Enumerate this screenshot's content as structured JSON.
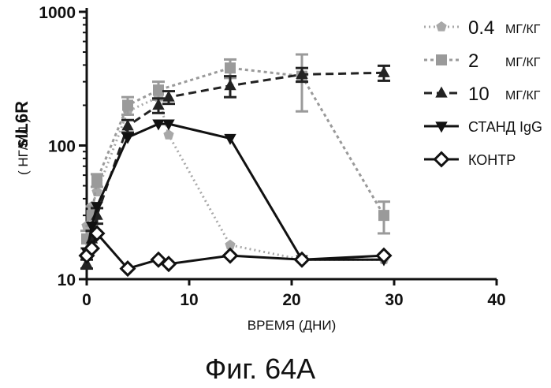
{
  "caption": "Фиг. 64A",
  "chart_data": {
    "type": "line",
    "title": "",
    "xlabel": "ВРЕМЯ (ДНИ)",
    "ylabel": "sIL6R",
    "ylabel_unit": "( НГ/МЛ )",
    "xlim": [
      0,
      40
    ],
    "ylim": [
      10,
      1000
    ],
    "yscale": "log",
    "xticks": [
      0,
      10,
      20,
      30,
      40
    ],
    "yticks": [
      10,
      100,
      1000
    ],
    "xtick_labels": [
      "0",
      "10",
      "20",
      "30",
      "40"
    ],
    "ytick_labels": [
      "10",
      "100",
      "1000"
    ],
    "grid": false,
    "legend_position": "right",
    "series": [
      {
        "name": "0.4",
        "unit": "МГ/КГ",
        "style": "dotted-light",
        "marker": "pentagon",
        "color": "#a8a8a8",
        "x": [
          0,
          0.5,
          1,
          4,
          7,
          8,
          14,
          21,
          29
        ],
        "y": [
          25,
          35,
          45,
          180,
          230,
          120,
          18,
          14,
          14
        ]
      },
      {
        "name": "2",
        "unit": "МГ/КГ",
        "style": "dotted",
        "marker": "square",
        "color": "#9a9a9a",
        "x": [
          0,
          0.5,
          1,
          4,
          7,
          14,
          21,
          29
        ],
        "y": [
          20,
          30,
          55,
          200,
          260,
          380,
          330,
          30
        ],
        "errors": [
          3,
          5,
          6,
          30,
          40,
          60,
          150,
          8
        ]
      },
      {
        "name": "10",
        "unit": "МГ/КГ",
        "style": "dashed",
        "marker": "triangle-up",
        "color": "#222222",
        "x": [
          0,
          0.5,
          1,
          4,
          7,
          8,
          14,
          21,
          29
        ],
        "y": [
          13,
          20,
          30,
          140,
          200,
          230,
          280,
          340,
          350
        ],
        "errors": [
          1,
          3,
          4,
          15,
          25,
          25,
          50,
          40,
          45
        ]
      },
      {
        "name": "СТАНД IgG",
        "style": "solid",
        "marker": "triangle-down",
        "color": "#111111",
        "x": [
          0,
          0.5,
          1,
          4,
          7,
          8,
          14,
          21,
          29
        ],
        "y": [
          16,
          25,
          35,
          115,
          145,
          145,
          113,
          14,
          14
        ]
      },
      {
        "name": "КОНТР",
        "style": "solid",
        "marker": "diamond",
        "color": "#111111",
        "x": [
          0,
          0.5,
          1,
          4,
          7,
          8,
          14,
          21,
          29
        ],
        "y": [
          15,
          17,
          22,
          12,
          14,
          13,
          15,
          14,
          15
        ]
      }
    ]
  }
}
